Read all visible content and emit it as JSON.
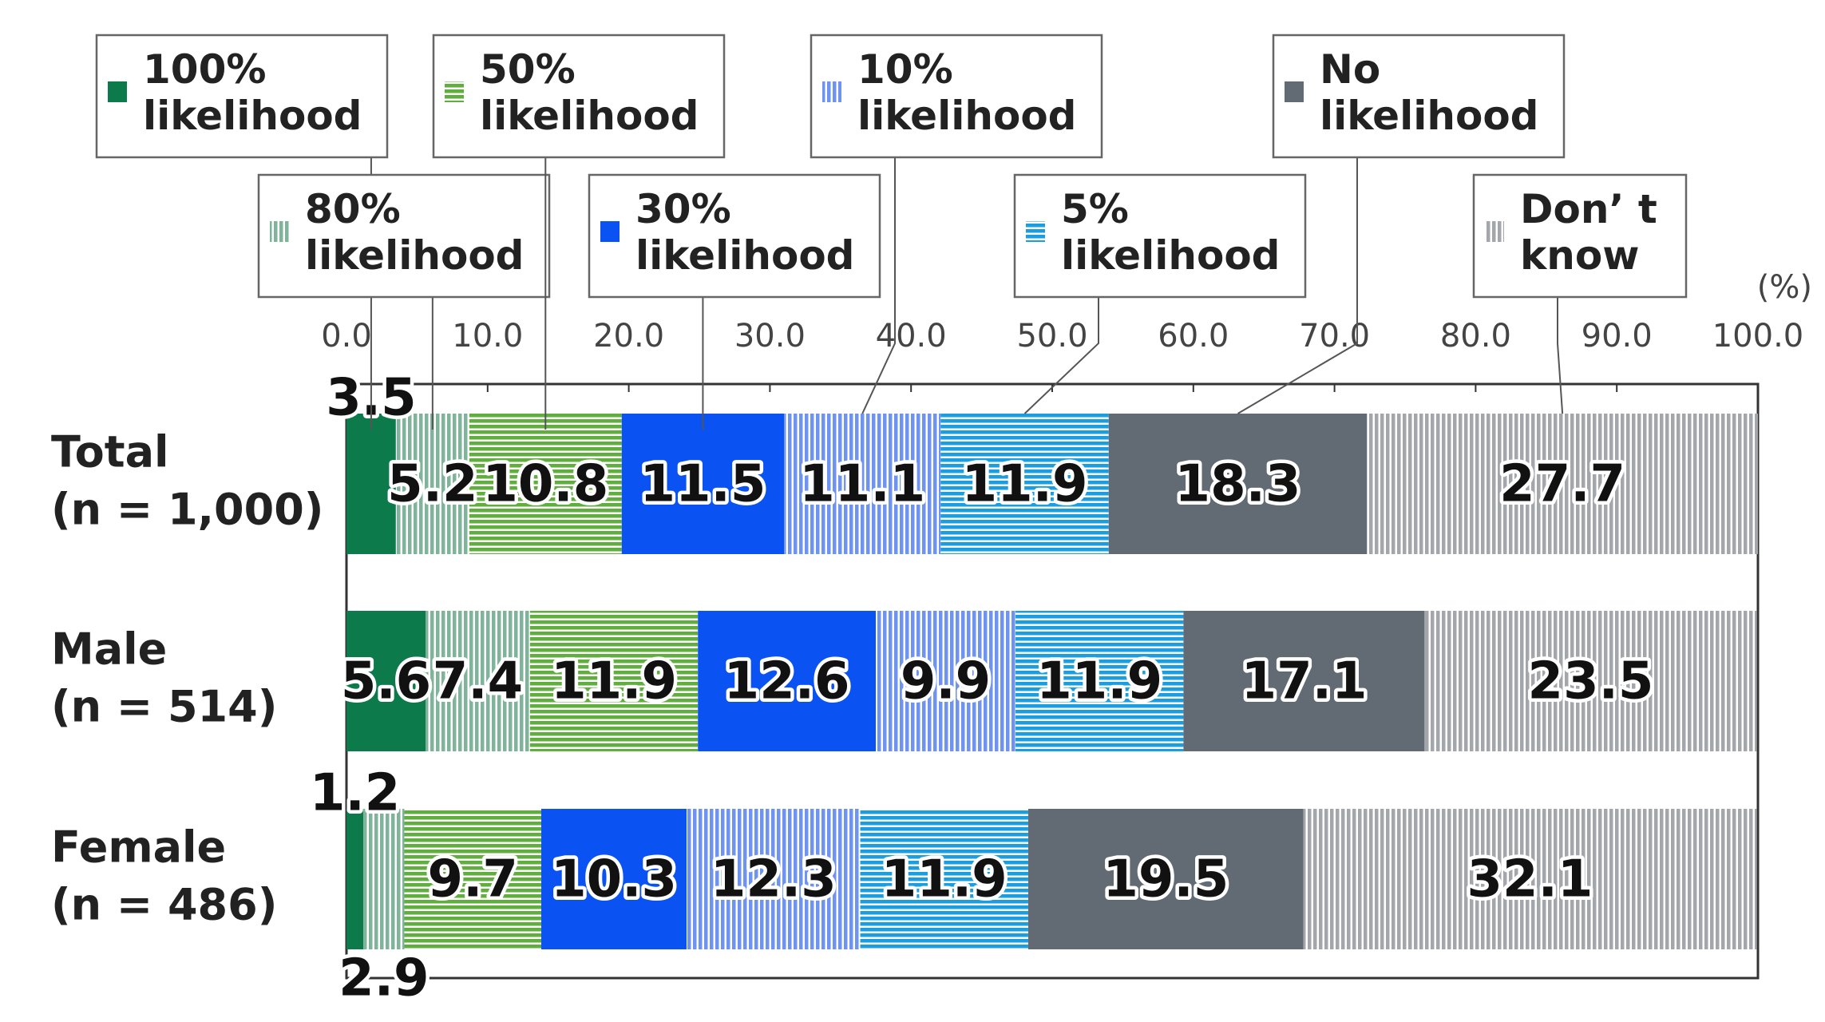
{
  "chart_data": {
    "type": "stacked-bar-horizontal",
    "unit_label": "(%)",
    "categories": [
      [
        "Total",
        "(n = 1,000)"
      ],
      [
        "Male",
        "(n = 514)"
      ],
      [
        "Female",
        "(n = 486)"
      ]
    ],
    "xlim": [
      0,
      100
    ],
    "xticks": [
      {
        "value": 0,
        "label": "0.0"
      },
      {
        "value": 10,
        "label": "10.0"
      },
      {
        "value": 20,
        "label": "20.0"
      },
      {
        "value": 30,
        "label": "30.0"
      },
      {
        "value": 40,
        "label": "40.0"
      },
      {
        "value": 50,
        "label": "50.0"
      },
      {
        "value": 60,
        "label": "60.0"
      },
      {
        "value": 70,
        "label": "70.0"
      },
      {
        "value": 80,
        "label": "80.0"
      },
      {
        "value": 90,
        "label": "90.0"
      },
      {
        "value": 100,
        "label": "100.0"
      }
    ],
    "series": [
      {
        "name": "100% likelihood",
        "color": "#0d7a4c",
        "pattern": "solid",
        "values": [
          3.5,
          5.6,
          1.2
        ]
      },
      {
        "name": "80% likelihood",
        "color": "#7fb49a",
        "pattern": "vertical",
        "values": [
          5.2,
          7.4,
          2.9
        ]
      },
      {
        "name": "50% likelihood",
        "color": "#5fae3e",
        "pattern": "horizontal",
        "values": [
          10.8,
          11.9,
          9.7
        ]
      },
      {
        "name": "30% likelihood",
        "color": "#0a52f2",
        "pattern": "solid",
        "values": [
          11.5,
          12.6,
          10.3
        ]
      },
      {
        "name": "10% likelihood",
        "color": "#6f93f0",
        "pattern": "vertical",
        "values": [
          11.1,
          9.9,
          12.3
        ]
      },
      {
        "name": "5% likelihood",
        "color": "#1a9ee0",
        "pattern": "horizontal",
        "values": [
          11.9,
          11.9,
          11.9
        ]
      },
      {
        "name": "No likelihood",
        "color": "#626a73",
        "pattern": "solid",
        "values": [
          18.3,
          17.1,
          19.5
        ]
      },
      {
        "name": "Don’ t know",
        "color": "#a3a7ac",
        "pattern": "vertical",
        "values": [
          27.7,
          23.5,
          32.1
        ]
      }
    ]
  }
}
